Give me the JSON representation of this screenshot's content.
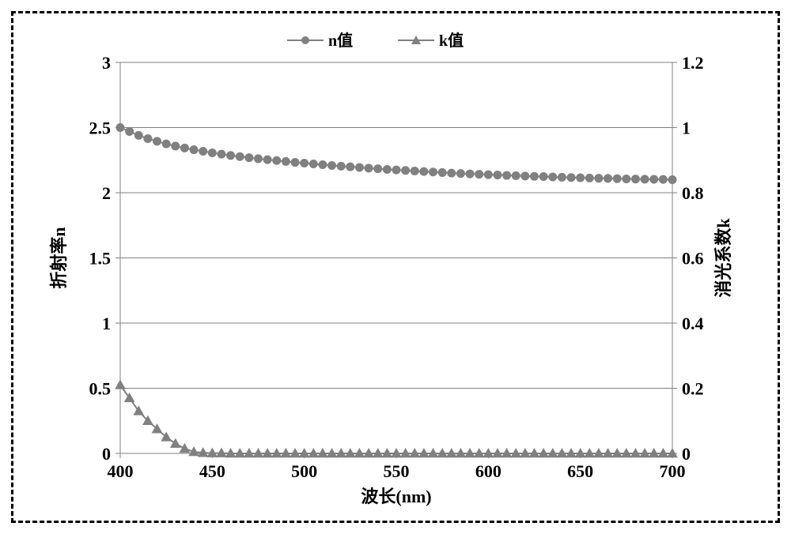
{
  "chart": {
    "type": "line-dual-axis",
    "background_color": "#ffffff",
    "frame_dash_color": "#000000",
    "legend": {
      "items": [
        {
          "label": "n值",
          "marker": "circle",
          "color": "#808080"
        },
        {
          "label": "k值",
          "marker": "triangle",
          "color": "#808080"
        }
      ],
      "fontsize": 20,
      "fontweight": "bold",
      "position": "top-center"
    },
    "x_axis": {
      "label": "波长(nm)",
      "label_fontsize": 22,
      "label_fontweight": "bold",
      "min": 400,
      "max": 700,
      "tick_step": 50,
      "ticks": [
        400,
        450,
        500,
        550,
        600,
        650,
        700
      ],
      "tick_fontsize": 22,
      "tick_fontweight": "bold"
    },
    "y_left": {
      "label": "折射率n",
      "label_fontsize": 22,
      "label_fontweight": "bold",
      "min": 0,
      "max": 3,
      "tick_step": 0.5,
      "ticks": [
        0,
        0.5,
        1,
        1.5,
        2,
        2.5,
        3
      ],
      "tick_labels": [
        "0",
        "0.5",
        "1",
        "1.5",
        "2",
        "2.5",
        "3"
      ]
    },
    "y_right": {
      "label": "消光系数k",
      "label_fontsize": 22,
      "label_fontweight": "bold",
      "min": 0,
      "max": 1.2,
      "tick_step": 0.2,
      "ticks": [
        0,
        0.2,
        0.4,
        0.6,
        0.8,
        1,
        1.2
      ],
      "tick_labels": [
        "0",
        "0.2",
        "0.4",
        "0.6",
        "0.8",
        "1",
        "1.2"
      ]
    },
    "grid": {
      "color": "#808080",
      "width": 1
    },
    "axis_line": {
      "color": "#808080",
      "width": 1
    },
    "series": [
      {
        "name": "n值",
        "axis": "left",
        "color": "#808080",
        "line_width": 2,
        "marker": "circle",
        "marker_size": 5,
        "marker_fill": "#808080",
        "x": [
          400,
          405,
          410,
          415,
          420,
          425,
          430,
          435,
          440,
          445,
          450,
          455,
          460,
          465,
          470,
          475,
          480,
          485,
          490,
          495,
          500,
          505,
          510,
          515,
          520,
          525,
          530,
          535,
          540,
          545,
          550,
          555,
          560,
          565,
          570,
          575,
          580,
          585,
          590,
          595,
          600,
          605,
          610,
          615,
          620,
          625,
          630,
          635,
          640,
          645,
          650,
          655,
          660,
          665,
          670,
          675,
          680,
          685,
          690,
          695,
          700
        ],
        "y": [
          2.5,
          2.47,
          2.44,
          2.415,
          2.395,
          2.375,
          2.358,
          2.343,
          2.33,
          2.318,
          2.306,
          2.296,
          2.286,
          2.277,
          2.269,
          2.261,
          2.254,
          2.247,
          2.24,
          2.233,
          2.227,
          2.221,
          2.215,
          2.209,
          2.204,
          2.199,
          2.194,
          2.189,
          2.184,
          2.179,
          2.175,
          2.171,
          2.167,
          2.163,
          2.159,
          2.155,
          2.151,
          2.148,
          2.145,
          2.142,
          2.139,
          2.136,
          2.133,
          2.131,
          2.128,
          2.126,
          2.124,
          2.121,
          2.119,
          2.117,
          2.115,
          2.113,
          2.111,
          2.11,
          2.108,
          2.106,
          2.105,
          2.104,
          2.103,
          2.102,
          2.1
        ]
      },
      {
        "name": "k值",
        "axis": "right",
        "color": "#808080",
        "line_width": 2,
        "marker": "triangle",
        "marker_size": 6,
        "marker_fill": "#808080",
        "x": [
          400,
          405,
          410,
          415,
          420,
          425,
          430,
          435,
          440,
          445,
          450,
          455,
          460,
          465,
          470,
          475,
          480,
          485,
          490,
          495,
          500,
          505,
          510,
          515,
          520,
          525,
          530,
          535,
          540,
          545,
          550,
          555,
          560,
          565,
          570,
          575,
          580,
          585,
          590,
          595,
          600,
          605,
          610,
          615,
          620,
          625,
          630,
          635,
          640,
          645,
          650,
          655,
          660,
          665,
          670,
          675,
          680,
          685,
          690,
          695,
          700
        ],
        "y": [
          0.21,
          0.17,
          0.13,
          0.1,
          0.075,
          0.05,
          0.03,
          0.015,
          0.005,
          0.002,
          0.001,
          0.001,
          0.0,
          0.0,
          0.0,
          0.0,
          0.0,
          0.0,
          0.0,
          0.0,
          0.0,
          0.0,
          0.0,
          0.0,
          0.0,
          0.0,
          0.0,
          0.0,
          0.0,
          0.0,
          0.0,
          0.0,
          0.0,
          0.0,
          0.0,
          0.0,
          0.0,
          0.0,
          0.0,
          0.0,
          0.0,
          0.0,
          0.0,
          0.0,
          0.0,
          0.0,
          0.0,
          0.0,
          0.0,
          0.0,
          0.0,
          0.0,
          0.0,
          0.0,
          0.0,
          0.0,
          0.0,
          0.0,
          0.0,
          0.0,
          0.0
        ]
      }
    ]
  }
}
